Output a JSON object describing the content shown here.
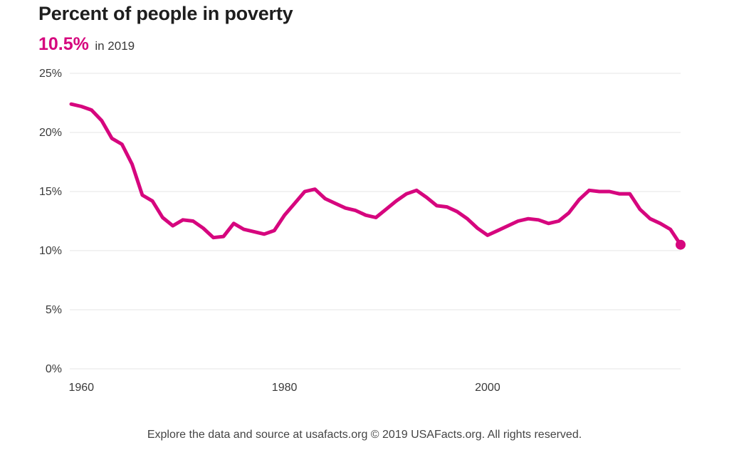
{
  "header": {
    "title": "Percent of people in poverty",
    "headline_value": "10.5%",
    "headline_label": "in 2019"
  },
  "footer": {
    "text": "Explore the data and source at usafacts.org © 2019 USAFacts.org. All rights reserved."
  },
  "colors": {
    "line": "#d6067e",
    "grid": "#e6e6e6",
    "text": "#3a3a3a"
  },
  "chart_data": {
    "type": "line",
    "title": "Percent of people in poverty",
    "xlabel": "",
    "ylabel": "",
    "xlim": [
      1959,
      2019
    ],
    "ylim": [
      0,
      25
    ],
    "grid": true,
    "legend": "none",
    "x_ticks": [
      {
        "value": 1960,
        "label": "1960"
      },
      {
        "value": 1980,
        "label": "1980"
      },
      {
        "value": 2000,
        "label": "2000"
      }
    ],
    "y_ticks": [
      {
        "value": 0,
        "label": "0%"
      },
      {
        "value": 5,
        "label": "5%"
      },
      {
        "value": 10,
        "label": "10%"
      },
      {
        "value": 15,
        "label": "15%"
      },
      {
        "value": 20,
        "label": "20%"
      },
      {
        "value": 25,
        "label": "25%"
      }
    ],
    "series": [
      {
        "x": [
          1959,
          1960,
          1961,
          1962,
          1963,
          1964,
          1965,
          1966,
          1967,
          1968,
          1969,
          1970,
          1971,
          1972,
          1973,
          1974,
          1975,
          1976,
          1977,
          1978,
          1979,
          1980,
          1981,
          1982,
          1983,
          1984,
          1985,
          1986,
          1987,
          1988,
          1989,
          1990,
          1991,
          1992,
          1993,
          1994,
          1995,
          1996,
          1997,
          1998,
          1999,
          2000,
          2001,
          2002,
          2003,
          2004,
          2005,
          2006,
          2007,
          2008,
          2009,
          2010,
          2011,
          2012,
          2013,
          2014,
          2015,
          2016,
          2017,
          2018,
          2019
        ],
        "values": [
          22.4,
          22.2,
          21.9,
          21.0,
          19.5,
          19.0,
          17.3,
          14.7,
          14.2,
          12.8,
          12.1,
          12.6,
          12.5,
          11.9,
          11.1,
          11.2,
          12.3,
          11.8,
          11.6,
          11.4,
          11.7,
          13.0,
          14.0,
          15.0,
          15.2,
          14.4,
          14.0,
          13.6,
          13.4,
          13.0,
          12.8,
          13.5,
          14.2,
          14.8,
          15.1,
          14.5,
          13.8,
          13.7,
          13.3,
          12.7,
          11.9,
          11.3,
          11.7,
          12.1,
          12.5,
          12.7,
          12.6,
          12.3,
          12.5,
          13.2,
          14.3,
          15.1,
          15.0,
          15.0,
          14.8,
          14.8,
          13.5,
          12.7,
          12.3,
          11.8,
          10.5
        ]
      }
    ]
  }
}
